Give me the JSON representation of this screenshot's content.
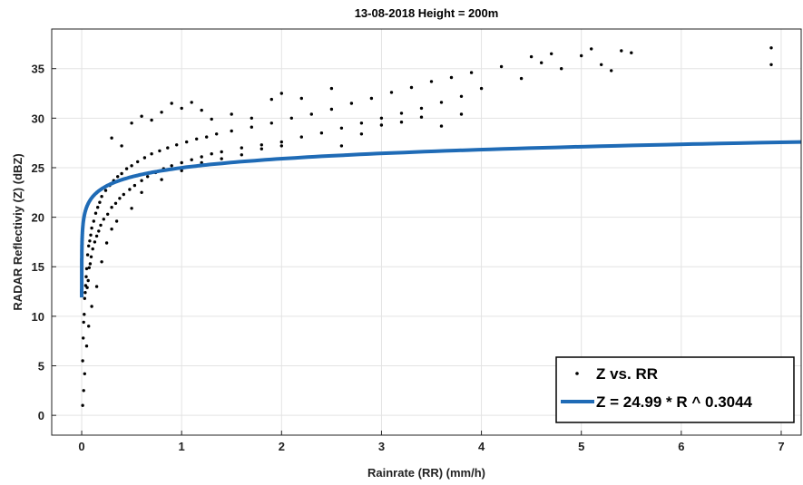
{
  "chart_data": {
    "type": "scatter",
    "title": "13-08-2018 Height = 200m",
    "xlabel": "Rainrate (RR) (mm/h)",
    "ylabel": "RADAR Reflectiviy (Z) (dBZ)",
    "xlim": [
      -0.3,
      7.2
    ],
    "ylim": [
      -2,
      39
    ],
    "xticks": [
      0,
      1,
      2,
      3,
      4,
      5,
      6,
      7
    ],
    "yticks": [
      0,
      5,
      10,
      15,
      20,
      25,
      30,
      35
    ],
    "grid": true,
    "legend_position": "bottom-right",
    "series": [
      {
        "name": "Z vs. RR",
        "kind": "scatter",
        "color": "#000000",
        "points": [
          [
            0.01,
            5.5
          ],
          [
            0.015,
            7.8
          ],
          [
            0.02,
            9.4
          ],
          [
            0.025,
            10.2
          ],
          [
            0.03,
            11.8
          ],
          [
            0.035,
            12.4
          ],
          [
            0.04,
            13.1
          ],
          [
            0.045,
            14.0
          ],
          [
            0.05,
            14.8
          ],
          [
            0.055,
            12.9
          ],
          [
            0.06,
            16.2
          ],
          [
            0.065,
            13.6
          ],
          [
            0.07,
            17.1
          ],
          [
            0.075,
            14.9
          ],
          [
            0.08,
            17.6
          ],
          [
            0.085,
            15.3
          ],
          [
            0.09,
            18.2
          ],
          [
            0.095,
            16.0
          ],
          [
            0.1,
            18.9
          ],
          [
            0.11,
            16.8
          ],
          [
            0.12,
            19.6
          ],
          [
            0.13,
            17.5
          ],
          [
            0.14,
            20.4
          ],
          [
            0.15,
            18.1
          ],
          [
            0.16,
            21.0
          ],
          [
            0.17,
            18.6
          ],
          [
            0.18,
            21.5
          ],
          [
            0.19,
            19.2
          ],
          [
            0.2,
            22.1
          ],
          [
            0.22,
            19.8
          ],
          [
            0.24,
            22.7
          ],
          [
            0.26,
            20.3
          ],
          [
            0.28,
            23.2
          ],
          [
            0.3,
            21.0
          ],
          [
            0.32,
            23.7
          ],
          [
            0.34,
            21.4
          ],
          [
            0.36,
            24.1
          ],
          [
            0.38,
            21.9
          ],
          [
            0.4,
            24.4
          ],
          [
            0.42,
            22.3
          ],
          [
            0.45,
            24.9
          ],
          [
            0.48,
            22.8
          ],
          [
            0.5,
            25.2
          ],
          [
            0.53,
            23.2
          ],
          [
            0.56,
            25.6
          ],
          [
            0.6,
            23.7
          ],
          [
            0.63,
            26.0
          ],
          [
            0.66,
            24.1
          ],
          [
            0.7,
            26.4
          ],
          [
            0.74,
            24.5
          ],
          [
            0.78,
            26.7
          ],
          [
            0.82,
            24.9
          ],
          [
            0.86,
            27.0
          ],
          [
            0.9,
            25.2
          ],
          [
            0.95,
            27.3
          ],
          [
            1.0,
            25.5
          ],
          [
            1.05,
            27.6
          ],
          [
            1.1,
            25.8
          ],
          [
            1.15,
            27.9
          ],
          [
            1.2,
            26.1
          ],
          [
            1.25,
            28.1
          ],
          [
            1.3,
            26.4
          ],
          [
            1.35,
            28.4
          ],
          [
            1.4,
            26.6
          ],
          [
            1.5,
            28.7
          ],
          [
            1.6,
            27.0
          ],
          [
            1.7,
            29.1
          ],
          [
            1.8,
            27.3
          ],
          [
            1.9,
            29.5
          ],
          [
            2.0,
            27.6
          ],
          [
            2.1,
            30.0
          ],
          [
            2.2,
            28.1
          ],
          [
            2.3,
            30.4
          ],
          [
            2.4,
            28.5
          ],
          [
            2.5,
            30.9
          ],
          [
            2.6,
            29.0
          ],
          [
            2.7,
            31.5
          ],
          [
            2.8,
            29.5
          ],
          [
            2.9,
            32.0
          ],
          [
            3.0,
            30.0
          ],
          [
            3.1,
            32.6
          ],
          [
            3.2,
            30.5
          ],
          [
            3.3,
            33.1
          ],
          [
            3.4,
            31.0
          ],
          [
            3.5,
            33.7
          ],
          [
            3.6,
            31.6
          ],
          [
            3.7,
            34.1
          ],
          [
            3.8,
            32.2
          ],
          [
            3.9,
            34.6
          ],
          [
            4.0,
            33.0
          ],
          [
            4.2,
            35.2
          ],
          [
            4.4,
            34.0
          ],
          [
            4.6,
            35.6
          ],
          [
            4.8,
            35.0
          ],
          [
            5.0,
            36.3
          ],
          [
            5.2,
            35.4
          ],
          [
            5.4,
            36.8
          ],
          [
            5.5,
            36.6
          ],
          [
            6.9,
            37.1
          ],
          [
            6.9,
            35.4
          ],
          [
            0.3,
            28.0
          ],
          [
            0.4,
            27.2
          ],
          [
            0.5,
            29.5
          ],
          [
            0.6,
            30.2
          ],
          [
            0.7,
            29.8
          ],
          [
            0.8,
            30.6
          ],
          [
            0.9,
            31.5
          ],
          [
            1.0,
            31.0
          ],
          [
            1.1,
            31.6
          ],
          [
            1.2,
            30.8
          ],
          [
            1.3,
            29.9
          ],
          [
            1.5,
            30.4
          ],
          [
            1.7,
            30.0
          ],
          [
            1.9,
            31.9
          ],
          [
            2.0,
            32.5
          ],
          [
            2.2,
            32.0
          ],
          [
            2.5,
            33.0
          ],
          [
            3.0,
            29.3
          ],
          [
            3.2,
            29.6
          ],
          [
            3.4,
            30.1
          ],
          [
            3.6,
            29.2
          ],
          [
            3.8,
            30.4
          ],
          [
            2.6,
            27.2
          ],
          [
            2.8,
            28.4
          ],
          [
            0.15,
            13.0
          ],
          [
            0.2,
            15.5
          ],
          [
            0.25,
            17.4
          ],
          [
            0.3,
            18.8
          ],
          [
            0.35,
            19.6
          ],
          [
            0.5,
            20.9
          ],
          [
            0.1,
            11.0
          ],
          [
            0.07,
            9.0
          ],
          [
            0.05,
            7.0
          ],
          [
            0.03,
            4.2
          ],
          [
            0.02,
            2.5
          ],
          [
            0.01,
            1.0
          ],
          [
            0.6,
            22.5
          ],
          [
            0.8,
            23.8
          ],
          [
            1.0,
            24.7
          ],
          [
            1.2,
            25.5
          ],
          [
            1.4,
            25.9
          ],
          [
            1.6,
            26.3
          ],
          [
            1.8,
            26.9
          ],
          [
            2.0,
            27.2
          ],
          [
            4.5,
            36.2
          ],
          [
            4.7,
            36.5
          ],
          [
            5.1,
            37.0
          ],
          [
            5.3,
            34.8
          ]
        ]
      },
      {
        "name": "Z = 24.99 * R ^ 0.3044",
        "kind": "fit-line",
        "color": "#1f6bb6",
        "coefficient": 24.99,
        "exponent": 0.3044
      }
    ]
  }
}
